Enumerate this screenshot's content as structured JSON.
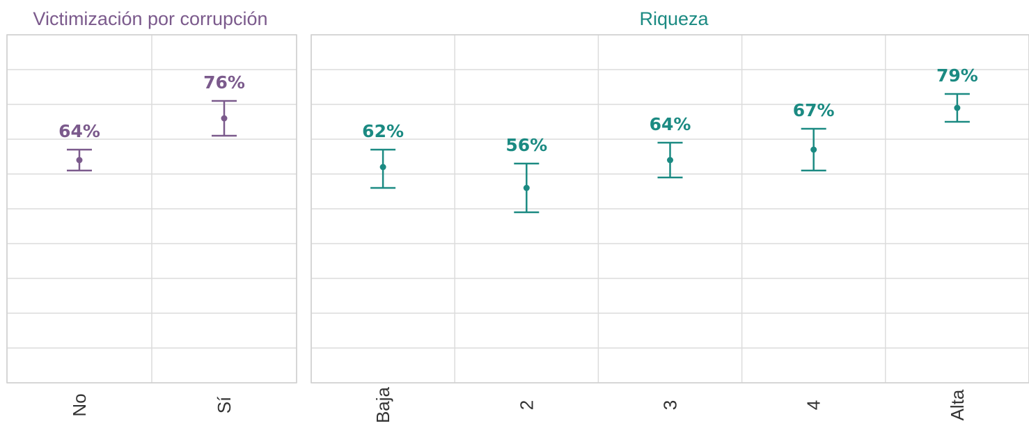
{
  "chart_data": [
    {
      "type": "errorbar",
      "title": "Victimización por corrupción",
      "color": "#7b5a8c",
      "categories": [
        "No",
        "Sí"
      ],
      "values": [
        64,
        76
      ],
      "labels": [
        "64%",
        "76%"
      ],
      "ci_low": [
        61,
        71
      ],
      "ci_high": [
        67,
        81
      ],
      "ylim": [
        0,
        100
      ],
      "grid": true
    },
    {
      "type": "errorbar",
      "title": "Riqueza",
      "color": "#1b8a82",
      "categories": [
        "Baja",
        "2",
        "3",
        "4",
        "Alta"
      ],
      "values": [
        62,
        56,
        64,
        67,
        79
      ],
      "labels": [
        "62%",
        "56%",
        "64%",
        "67%",
        "79%"
      ],
      "ci_low": [
        56,
        49,
        59,
        61,
        75
      ],
      "ci_high": [
        67,
        63,
        69,
        73,
        83
      ],
      "ylim": [
        0,
        100
      ],
      "grid": true
    }
  ]
}
